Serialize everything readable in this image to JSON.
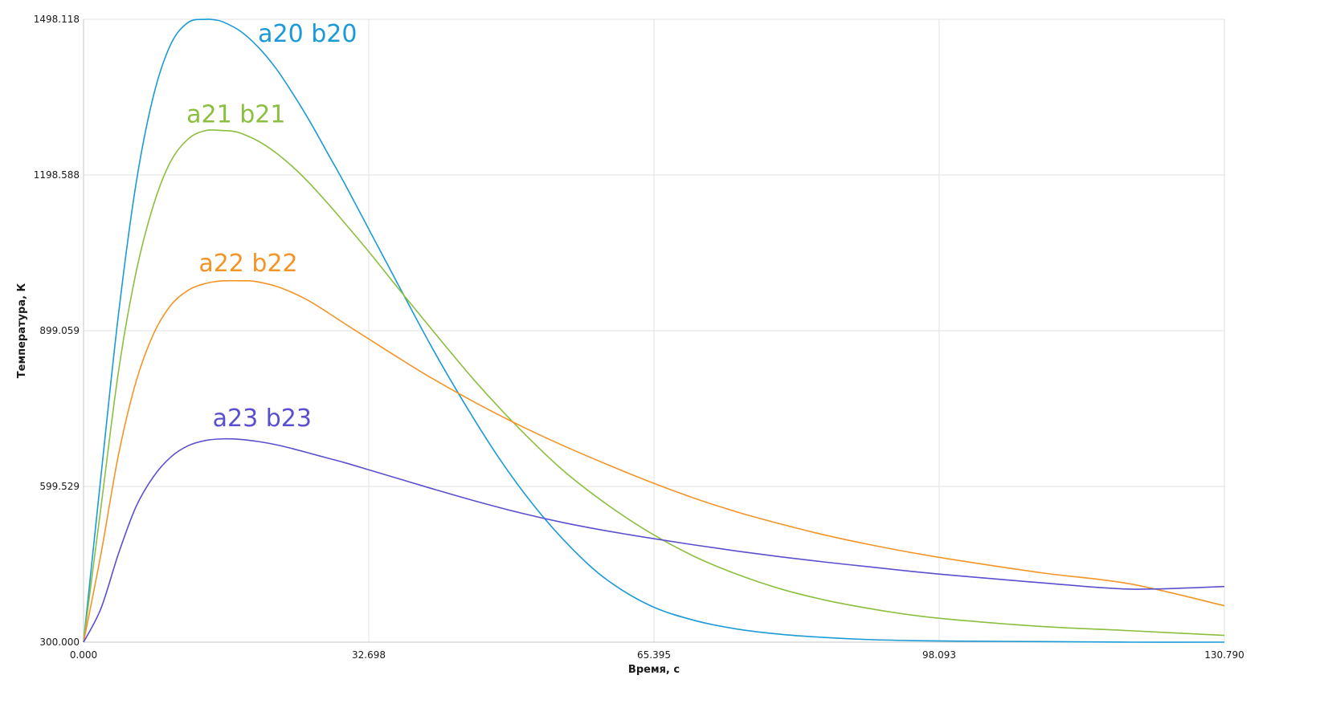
{
  "chart_data": {
    "type": "line",
    "xlabel": "Время, с",
    "ylabel": "Температура, К",
    "xlim": [
      0,
      130.79
    ],
    "ylim": [
      300.0,
      1498.118
    ],
    "x_ticks": [
      "0.000",
      "32.698",
      "65.395",
      "98.093",
      "130.790"
    ],
    "y_ticks": [
      "300.000",
      "599.529",
      "899.059",
      "1198.588",
      "1498.118"
    ],
    "grid": true,
    "series": [
      {
        "name": "a20  b20",
        "color": "#1a9ad6",
        "label_pos": [
          20.0,
          1455
        ],
        "x": [
          0,
          2,
          4,
          6,
          8,
          10,
          12,
          14,
          15,
          16,
          18,
          20,
          22,
          24,
          26,
          28,
          30,
          33,
          36,
          40,
          44,
          48,
          52,
          56,
          60,
          65,
          70,
          75,
          80,
          85,
          90,
          95,
          100,
          110,
          120,
          130.79
        ],
        "y": [
          300,
          620,
          930,
          1180,
          1350,
          1450,
          1492,
          1498,
          1497,
          1493,
          1475,
          1445,
          1405,
          1355,
          1300,
          1240,
          1180,
          1085,
          990,
          865,
          750,
          645,
          555,
          480,
          420,
          370,
          342,
          325,
          315,
          309,
          305,
          303,
          302,
          301,
          300,
          300
        ]
      },
      {
        "name": "a21  b21",
        "color": "#8cbf3f",
        "label_pos": [
          11.8,
          1300
        ],
        "x": [
          0,
          2,
          4,
          6,
          8,
          10,
          12,
          14,
          16,
          17,
          18,
          20,
          22,
          24,
          26,
          28,
          30,
          33,
          36,
          40,
          45,
          50,
          55,
          60,
          65,
          70,
          75,
          80,
          85,
          90,
          95,
          100,
          110,
          120,
          130.79
        ],
        "y": [
          300,
          560,
          820,
          1010,
          1140,
          1225,
          1268,
          1284,
          1284,
          1283,
          1279,
          1264,
          1242,
          1214,
          1181,
          1144,
          1105,
          1045,
          982,
          900,
          800,
          710,
          630,
          565,
          510,
          465,
          430,
          402,
          381,
          365,
          352,
          343,
          330,
          322,
          313
        ]
      },
      {
        "name": "a22  b22",
        "color": "#f39426",
        "label_pos": [
          13.2,
          1013
        ],
        "x": [
          0,
          2,
          4,
          6,
          8,
          10,
          12,
          14,
          16,
          18,
          19,
          20,
          22,
          24,
          26,
          28,
          30,
          33,
          36,
          40,
          45,
          50,
          55,
          60,
          65,
          70,
          75,
          80,
          85,
          90,
          95,
          100,
          110,
          120,
          130.79
        ],
        "y": [
          300,
          470,
          660,
          800,
          892,
          948,
          977,
          990,
          995,
          995,
          995,
          993,
          985,
          972,
          955,
          934,
          912,
          880,
          848,
          807,
          760,
          717,
          678,
          642,
          608,
          577,
          550,
          527,
          506,
          488,
          472,
          458,
          433,
          412,
          370
        ]
      },
      {
        "name": "a23  b23",
        "color": "#5a4fcf",
        "label_pos": [
          14.8,
          715
        ],
        "x": [
          0,
          2,
          4,
          6,
          8,
          10,
          12,
          14,
          16,
          18,
          20,
          22,
          24,
          26,
          28,
          30,
          33,
          36,
          40,
          45,
          50,
          55,
          60,
          65,
          70,
          75,
          80,
          85,
          90,
          95,
          100,
          110,
          120,
          130.79
        ],
        "y": [
          300,
          365,
          470,
          560,
          618,
          656,
          678,
          688,
          691,
          690,
          686,
          680,
          672,
          663,
          654,
          645,
          630,
          615,
          595,
          571,
          549,
          530,
          514,
          500,
          487,
          475,
          464,
          454,
          445,
          436,
          428,
          414,
          402,
          407
        ]
      }
    ]
  }
}
